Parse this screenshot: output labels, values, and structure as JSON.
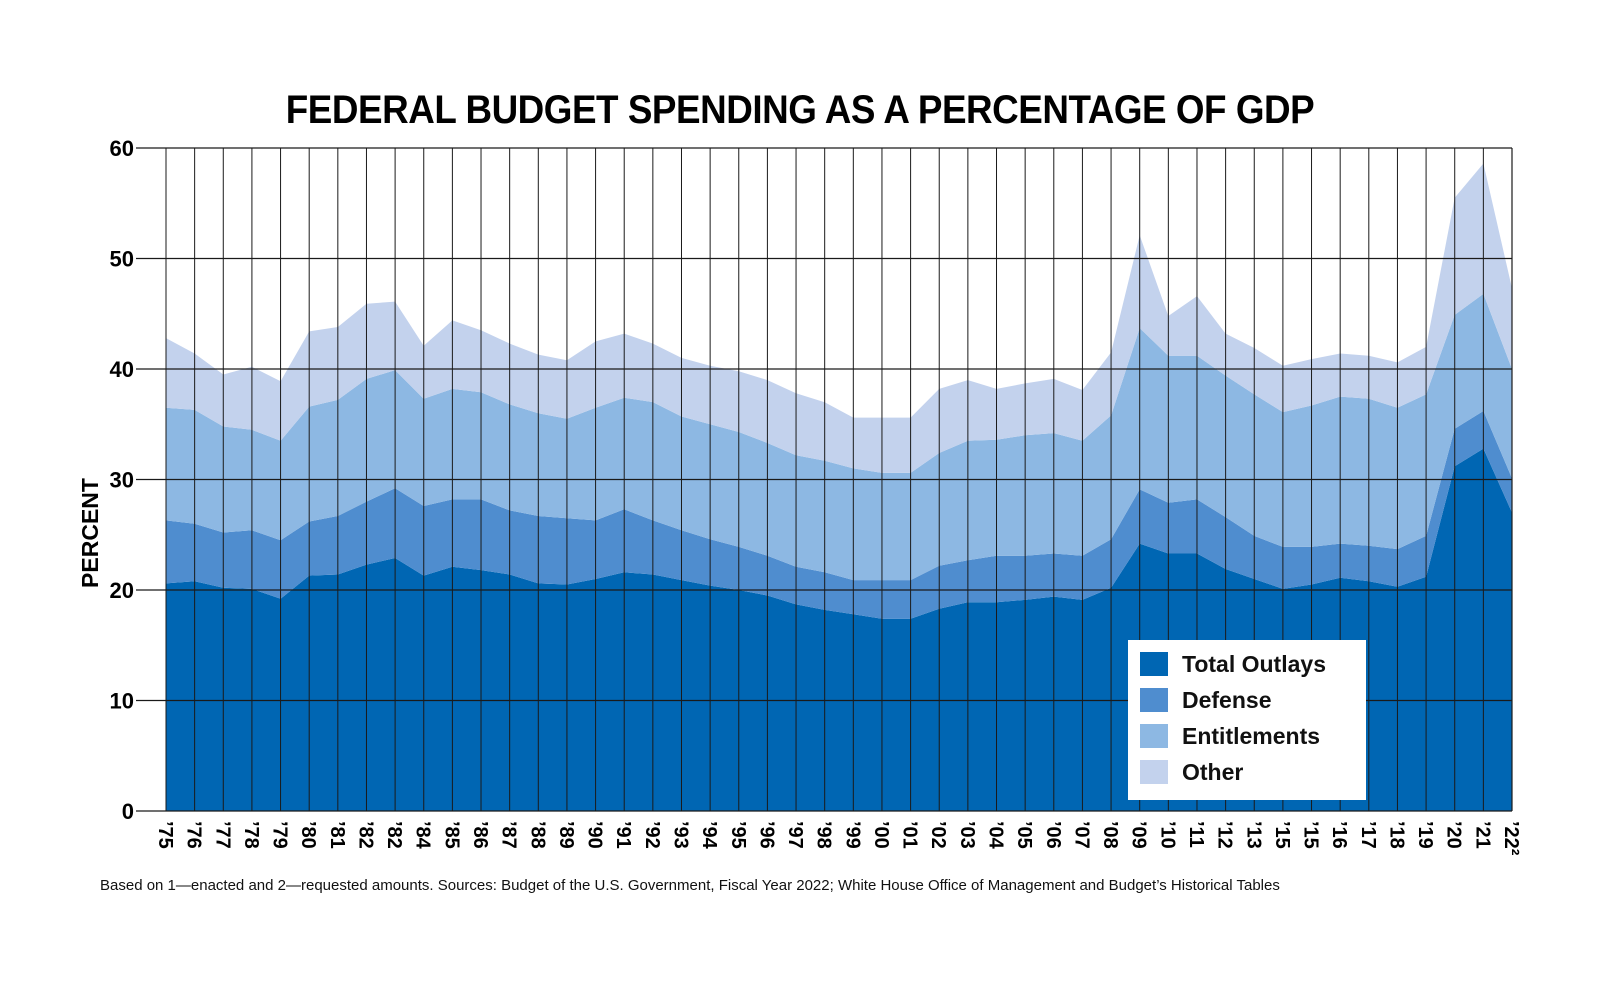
{
  "chart_data": {
    "type": "area",
    "title": "FEDERAL BUDGET SPENDING AS A PERCENTAGE OF GDP",
    "ylabel": "PERCENT",
    "xlabel": "",
    "ylim": [
      0,
      60
    ],
    "yticks": [
      "0",
      "10",
      "20",
      "30",
      "40",
      "50",
      "60"
    ],
    "grid": true,
    "legend_position": "bottom-right",
    "x": [
      "’75",
      "’76",
      "’77",
      "’78",
      "’79",
      "’80",
      "’81",
      "’82",
      "’82",
      "’84",
      "’85",
      "’86",
      "’87",
      "’88",
      "’89",
      "’90",
      "’91",
      "’92",
      "’93",
      "’94",
      "’95",
      "’96",
      "’97",
      "’98",
      "’99",
      "’00",
      "’01",
      "’02",
      "’03",
      "’04",
      "’05",
      "’06",
      "’07",
      "’08",
      "’09",
      "’10",
      "’11",
      "’12",
      "’13",
      "’15",
      "’15",
      "’16",
      "’17",
      "’18",
      "’19",
      "’20",
      "’21",
      "’22²"
    ],
    "series": [
      {
        "name": "Total Outlays",
        "color": "#0066b3",
        "values": [
          20.6,
          20.8,
          20.2,
          20.1,
          19.2,
          21.3,
          21.4,
          22.3,
          22.9,
          21.3,
          22.1,
          21.8,
          21.4,
          20.6,
          20.5,
          21.0,
          21.6,
          21.4,
          20.9,
          20.4,
          20.0,
          19.5,
          18.7,
          18.2,
          17.8,
          17.4,
          17.4,
          18.3,
          18.9,
          18.9,
          19.1,
          19.4,
          19.1,
          20.2,
          24.2,
          23.3,
          23.3,
          21.9,
          21.0,
          20.1,
          20.5,
          21.1,
          20.8,
          20.3,
          21.2,
          31.2,
          32.8,
          27.0
        ]
      },
      {
        "name": "Defense",
        "color": "#4f8dcf",
        "values": [
          5.7,
          5.2,
          5.0,
          5.3,
          5.3,
          4.9,
          5.3,
          5.7,
          6.3,
          6.3,
          6.1,
          6.4,
          5.8,
          6.1,
          6.0,
          5.3,
          5.7,
          4.9,
          4.5,
          4.2,
          3.9,
          3.6,
          3.4,
          3.4,
          3.1,
          3.5,
          3.5,
          3.9,
          3.8,
          4.2,
          4.0,
          3.9,
          4.0,
          4.4,
          4.9,
          4.6,
          4.9,
          4.7,
          3.9,
          3.8,
          3.4,
          3.1,
          3.2,
          3.4,
          3.7,
          3.4,
          3.4,
          3.1
        ]
      },
      {
        "name": "Entitlements",
        "color": "#8db8e3",
        "values": [
          10.2,
          10.3,
          9.6,
          9.1,
          9.0,
          10.4,
          10.5,
          11.1,
          10.7,
          9.7,
          10.0,
          9.7,
          9.6,
          9.3,
          9.0,
          10.2,
          10.1,
          10.7,
          10.3,
          10.4,
          10.4,
          10.2,
          10.1,
          10.1,
          10.1,
          9.7,
          9.7,
          10.2,
          10.8,
          10.5,
          10.9,
          10.9,
          10.4,
          11.2,
          14.6,
          13.3,
          13.0,
          12.8,
          12.8,
          12.2,
          12.8,
          13.3,
          13.3,
          12.8,
          12.8,
          10.3,
          10.6,
          9.9
        ]
      },
      {
        "name": "Other",
        "color": "#c3d2ed",
        "values": [
          6.3,
          5.1,
          4.7,
          5.7,
          5.4,
          6.8,
          6.6,
          6.8,
          6.2,
          4.8,
          6.2,
          5.6,
          5.5,
          5.3,
          5.3,
          6.0,
          5.8,
          5.3,
          5.3,
          5.3,
          5.5,
          5.7,
          5.6,
          5.3,
          4.6,
          5.0,
          5.0,
          5.8,
          5.5,
          4.6,
          4.7,
          4.9,
          4.6,
          5.7,
          8.4,
          3.6,
          5.4,
          3.8,
          4.2,
          4.2,
          4.2,
          3.9,
          3.9,
          4.1,
          4.3,
          10.6,
          11.8,
          7.3
        ]
      }
    ]
  },
  "legend": [
    {
      "label": "Total Outlays",
      "color": "#0066b3"
    },
    {
      "label": "Defense",
      "color": "#4f8dcf"
    },
    {
      "label": "Entitlements",
      "color": "#8db8e3"
    },
    {
      "label": "Other",
      "color": "#c3d2ed"
    }
  ],
  "source_note": "Based on 1—enacted and 2—requested amounts. Sources: Budget of the U.S. Government, Fiscal Year 2022; White House Office of Management and Budget’s Historical Tables"
}
